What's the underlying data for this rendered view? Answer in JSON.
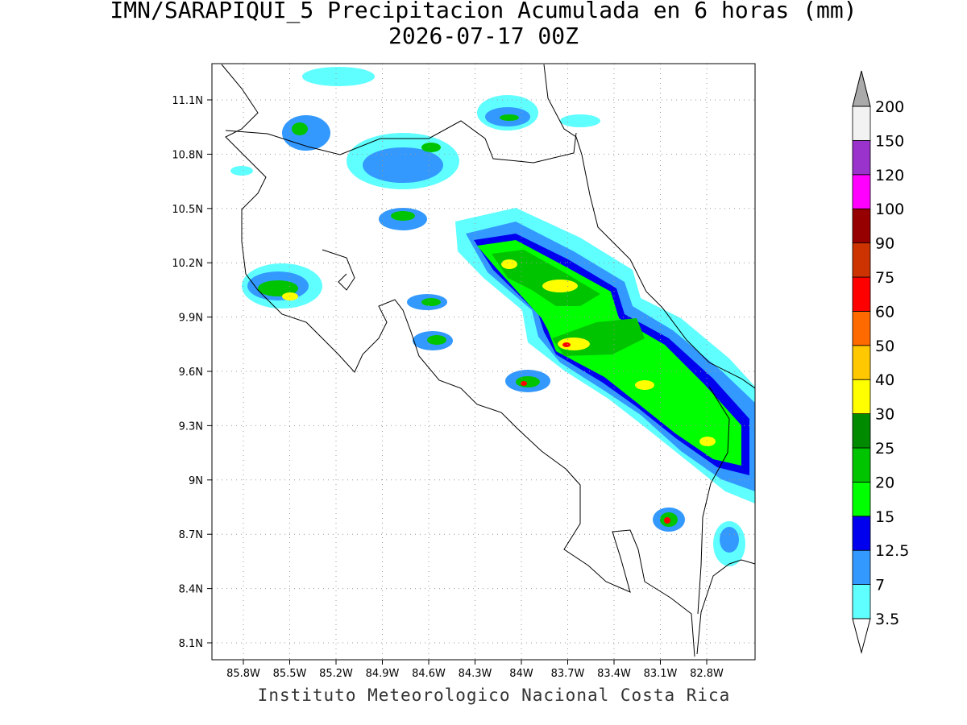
{
  "title": "IMN/SARAPIQUI_5 Precipitacion Acumulada en 6 horas (mm)",
  "subtitle": "2026-07-17 00Z",
  "lat_labels": [
    "11.1N",
    "10.8N",
    "10.5N",
    "10.2N",
    "9.9N",
    "9.6N",
    "9.3N",
    "9N",
    "8.7N",
    "8.4N",
    "8.1N"
  ],
  "lon_labels": [
    "85.8W",
    "85.5W",
    "85.2W",
    "84.9W",
    "84.6W",
    "84.3W",
    "84W",
    "83.7W",
    "83.4W",
    "83.1W",
    "82.8W"
  ],
  "colorbar": {
    "labels": [
      "3.5",
      "7",
      "12.5",
      "15",
      "20",
      "25",
      "30",
      "40",
      "50",
      "60",
      "75",
      "90",
      "100",
      "120",
      "150",
      "200"
    ],
    "colors": [
      "#5fffff",
      "#3399ff",
      "#0000ee",
      "#00ff00",
      "#00c400",
      "#008a00",
      "#ffff00",
      "#ffc800",
      "#ff6a00",
      "#ff0000",
      "#cc3300",
      "#960000",
      "#ff00ff",
      "#9933cc",
      "#f2f2f2"
    ],
    "over_color": "#aaaaaa",
    "under_color": "#ffffff"
  },
  "footer": "Instituto Meteorologico Nacional Costa Rica"
}
